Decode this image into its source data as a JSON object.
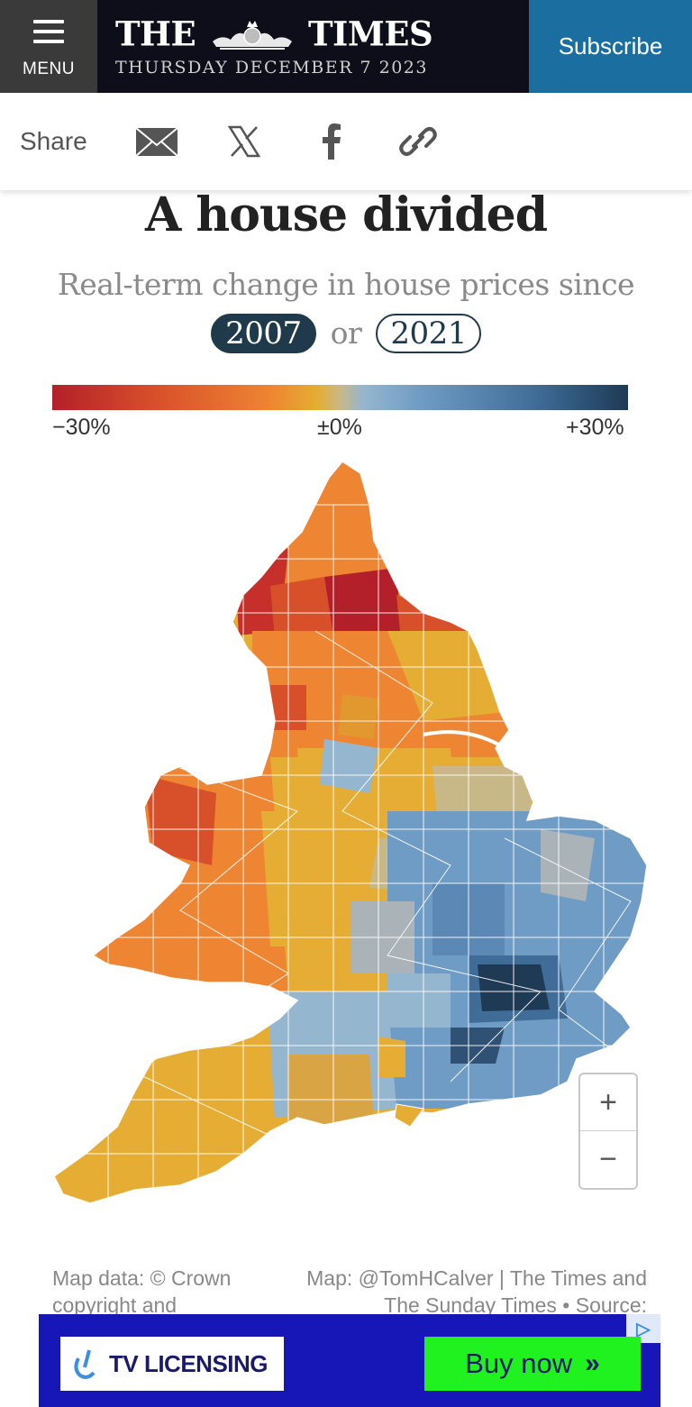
{
  "header": {
    "menu_label": "MENU",
    "masthead_left": "THE",
    "masthead_right": "TIMES",
    "date": "THURSDAY DECEMBER 7 2023",
    "subscribe_label": "Subscribe"
  },
  "share": {
    "label": "Share",
    "icons": [
      "email-icon",
      "x-icon",
      "facebook-icon",
      "link-icon"
    ]
  },
  "article": {
    "title": "A house divided",
    "subtitle": "Real-term change in house prices since",
    "option_a": "2007",
    "option_or": "or",
    "option_b": "2021",
    "selected_option": "2007"
  },
  "legend": {
    "min_label": "−30%",
    "mid_label": "±0%",
    "max_label": "+30%",
    "colors": [
      "#b3202a",
      "#ee8532",
      "#e5ad33",
      "#95b6cf",
      "#3f6d98",
      "#1e3a55"
    ]
  },
  "map": {
    "zoom_in": "+",
    "zoom_out": "−"
  },
  "credits": {
    "left": "Map data: © Crown copyright and",
    "right": "Map: @TomHCalver | The Times and The Sunday Times • Source:"
  },
  "ad": {
    "brand": "TV LICENSING",
    "cta": "Buy now",
    "cta_icon": "double-chevron-right-icon",
    "badge_icon": "ad-choices-icon"
  }
}
